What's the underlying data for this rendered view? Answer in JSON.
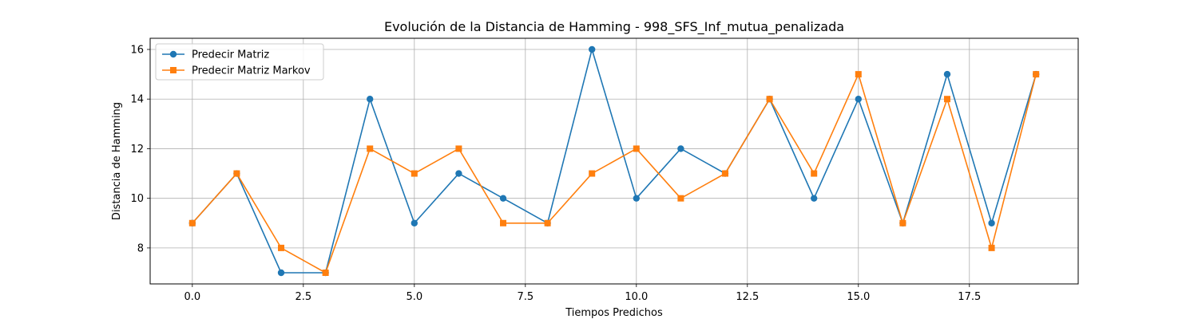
{
  "chart_data": {
    "type": "line",
    "title": "Evolución de la Distancia de Hamming - 998_SFS_Inf_mutua_penalizada",
    "xlabel": "Tiempos Predichos",
    "ylabel": "Distancia de Hamming",
    "xlim": [
      -0.95,
      19.95
    ],
    "ylim": [
      6.55,
      16.45
    ],
    "xticks": [
      0.0,
      2.5,
      5.0,
      7.5,
      10.0,
      12.5,
      15.0,
      17.5
    ],
    "xtick_labels": [
      "0.0",
      "2.5",
      "5.0",
      "7.5",
      "10.0",
      "12.5",
      "15.0",
      "17.5"
    ],
    "yticks": [
      8,
      10,
      12,
      14,
      16
    ],
    "ytick_labels": [
      "8",
      "10",
      "12",
      "14",
      "16"
    ],
    "grid": true,
    "legend_position": "top-left",
    "x": [
      0,
      1,
      2,
      3,
      4,
      5,
      6,
      7,
      8,
      9,
      10,
      11,
      12,
      13,
      14,
      15,
      16,
      17,
      18,
      19
    ],
    "series": [
      {
        "name": "Predecir Matriz",
        "color": "#1f77b4",
        "marker": "circle",
        "values": [
          9,
          11,
          7,
          7,
          14,
          9,
          11,
          10,
          9,
          16,
          10,
          12,
          11,
          14,
          10,
          14,
          9,
          15,
          9,
          15
        ]
      },
      {
        "name": "Predecir Matriz Markov",
        "color": "#ff7f0e",
        "marker": "square",
        "values": [
          9,
          11,
          8,
          7,
          12,
          11,
          12,
          9,
          9,
          11,
          12,
          10,
          11,
          14,
          11,
          15,
          9,
          14,
          8,
          15
        ]
      }
    ]
  }
}
